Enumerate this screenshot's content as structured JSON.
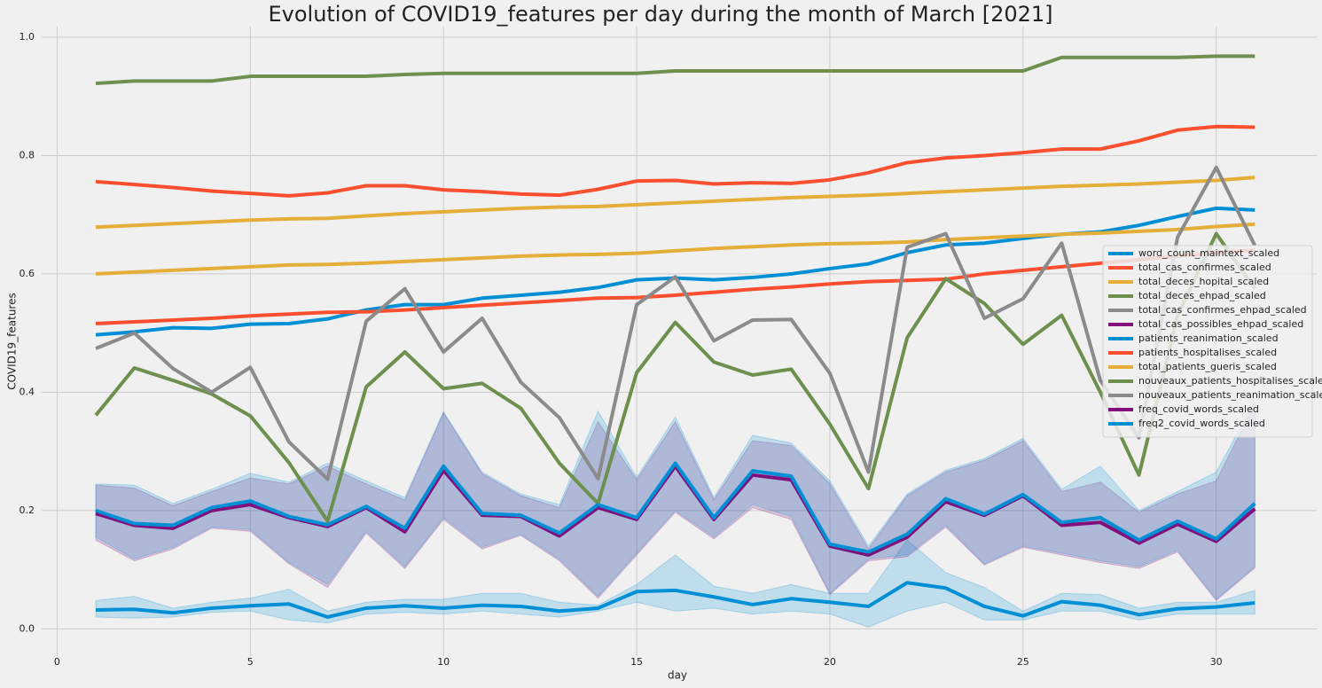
{
  "chart_data": {
    "type": "line",
    "title": "Evolution of COVID19_features per day during the month of March  [2021]",
    "xlabel": "day",
    "ylabel": "COVID19_features",
    "x": [
      1,
      2,
      3,
      4,
      5,
      6,
      7,
      8,
      9,
      10,
      11,
      12,
      13,
      14,
      15,
      16,
      17,
      18,
      19,
      20,
      21,
      22,
      23,
      24,
      25,
      26,
      27,
      28,
      29,
      30,
      31
    ],
    "xlim": [
      -0.4,
      32.6
    ],
    "xticks": [
      0,
      5,
      10,
      15,
      20,
      25,
      30
    ],
    "ylim": [
      -0.046,
      1.018
    ],
    "yticks": [
      {
        "value": 0,
        "label": "0.0"
      },
      0.2,
      0.4,
      0.6,
      0.8,
      {
        "value": 1,
        "label": "1.0"
      }
    ],
    "grid": true,
    "legend": "center right",
    "series": [
      {
        "name": "word_count_maintext_scaled",
        "color": "#008fd5",
        "values": [
          0.032,
          0.033,
          0.027,
          0.035,
          0.039,
          0.042,
          0.02,
          0.035,
          0.039,
          0.035,
          0.04,
          0.038,
          0.03,
          0.035,
          0.063,
          0.065,
          0.054,
          0.041,
          0.051,
          0.045,
          0.038,
          0.078,
          0.069,
          0.038,
          0.022,
          0.046,
          0.04,
          0.024,
          0.034,
          0.037,
          0.044
        ],
        "lower": [
          0.02,
          0.018,
          0.02,
          0.028,
          0.03,
          0.015,
          0.01,
          0.025,
          0.028,
          0.025,
          0.03,
          0.025,
          0.02,
          0.03,
          0.045,
          0.03,
          0.035,
          0.025,
          0.03,
          0.025,
          0.003,
          0.03,
          0.045,
          0.015,
          0.015,
          0.03,
          0.03,
          0.015,
          0.025,
          0.025,
          0.025
        ],
        "upper": [
          0.048,
          0.055,
          0.035,
          0.045,
          0.052,
          0.067,
          0.03,
          0.045,
          0.05,
          0.05,
          0.06,
          0.06,
          0.045,
          0.04,
          0.075,
          0.125,
          0.072,
          0.06,
          0.075,
          0.06,
          0.06,
          0.15,
          0.095,
          0.07,
          0.03,
          0.06,
          0.058,
          0.035,
          0.045,
          0.045,
          0.065
        ]
      },
      {
        "name": "total_cas_confirmes_scaled",
        "color": "#fc4f30",
        "values": [
          0.756,
          0.751,
          0.746,
          0.74,
          0.736,
          0.732,
          0.737,
          0.749,
          0.749,
          0.742,
          0.739,
          0.735,
          0.733,
          0.743,
          0.757,
          0.758,
          0.752,
          0.754,
          0.753,
          0.759,
          0.771,
          0.788,
          0.796,
          0.8,
          0.805,
          0.811,
          0.811,
          0.825,
          0.843,
          0.849,
          0.848
        ]
      },
      {
        "name": "total_deces_hopital_scaled",
        "color": "#e5ae38",
        "values": [
          0.679,
          0.682,
          0.685,
          0.688,
          0.691,
          0.693,
          0.694,
          0.698,
          0.702,
          0.705,
          0.708,
          0.711,
          0.713,
          0.714,
          0.717,
          0.72,
          0.723,
          0.726,
          0.729,
          0.731,
          0.733,
          0.736,
          0.739,
          0.742,
          0.745,
          0.748,
          0.75,
          0.752,
          0.755,
          0.758,
          0.763
        ]
      },
      {
        "name": "total_deces_ehpad_scaled",
        "color": "#6d904f",
        "values": [
          0.922,
          0.926,
          0.926,
          0.926,
          0.934,
          0.934,
          0.934,
          0.934,
          0.937,
          0.939,
          0.939,
          0.939,
          0.939,
          0.939,
          0.939,
          0.943,
          0.943,
          0.943,
          0.943,
          0.943,
          0.943,
          0.943,
          0.943,
          0.943,
          0.943,
          0.966,
          0.966,
          0.966,
          0.966,
          0.968,
          0.968
        ]
      },
      {
        "name": "total_cas_confirmes_ehpad_scaled",
        "color": "#8b8b8b",
        "values": [
          null,
          null,
          null,
          null,
          null,
          null,
          null,
          null,
          null,
          null,
          null,
          null,
          null,
          null,
          null,
          null,
          null,
          null,
          null,
          null,
          null,
          null,
          null,
          null,
          null,
          null,
          null,
          null,
          null,
          null,
          null
        ]
      },
      {
        "name": "total_cas_possibles_ehpad_scaled",
        "color": "#810f7c",
        "values": [
          null,
          null,
          null,
          null,
          null,
          null,
          null,
          null,
          null,
          null,
          null,
          null,
          null,
          null,
          null,
          null,
          null,
          null,
          null,
          null,
          null,
          null,
          null,
          null,
          null,
          null,
          null,
          null,
          null,
          null,
          null
        ]
      },
      {
        "name": "patients_reanimation_scaled",
        "color": "#008fd5",
        "values": [
          0.497,
          0.502,
          0.509,
          0.508,
          0.515,
          0.516,
          0.524,
          0.539,
          0.548,
          0.548,
          0.559,
          0.564,
          0.569,
          0.577,
          0.59,
          0.593,
          0.59,
          0.594,
          0.6,
          0.609,
          0.617,
          0.636,
          0.649,
          0.652,
          0.66,
          0.667,
          0.671,
          0.682,
          0.697,
          0.711,
          0.708
        ]
      },
      {
        "name": "patients_hospitalises_scaled",
        "color": "#fc4f30",
        "values": [
          0.516,
          0.519,
          0.522,
          0.525,
          0.529,
          0.532,
          0.535,
          0.536,
          0.539,
          0.543,
          0.547,
          0.551,
          0.555,
          0.559,
          0.56,
          0.564,
          0.569,
          0.574,
          0.578,
          0.583,
          0.587,
          0.589,
          0.591,
          0.6,
          0.606,
          0.612,
          0.618,
          0.624,
          0.63,
          0.636,
          0.64
        ]
      },
      {
        "name": "total_patients_gueris_scaled",
        "color": "#e5ae38",
        "values": [
          0.6,
          0.603,
          0.606,
          0.609,
          0.612,
          0.615,
          0.616,
          0.618,
          0.621,
          0.624,
          0.627,
          0.63,
          0.632,
          0.633,
          0.635,
          0.639,
          0.643,
          0.646,
          0.649,
          0.651,
          0.652,
          0.654,
          0.658,
          0.661,
          0.664,
          0.667,
          0.669,
          0.672,
          0.675,
          0.68,
          0.684
        ]
      },
      {
        "name": "nouveaux_patients_hospitalises_scaled",
        "color": "#6d904f",
        "values": [
          0.361,
          0.441,
          0.42,
          0.397,
          0.36,
          0.281,
          0.182,
          0.409,
          0.468,
          0.406,
          0.415,
          0.373,
          0.28,
          0.212,
          0.433,
          0.518,
          0.451,
          0.429,
          0.439,
          0.346,
          0.237,
          0.492,
          0.592,
          0.55,
          0.481,
          0.53,
          0.4,
          0.26,
          0.53,
          0.668,
          0.575
        ]
      },
      {
        "name": "nouveaux_patients_reanimation_scaled",
        "color": "#8b8b8b",
        "values": [
          0.474,
          0.5,
          0.44,
          0.4,
          0.442,
          0.316,
          0.253,
          0.52,
          0.575,
          0.468,
          0.525,
          0.417,
          0.357,
          0.254,
          0.548,
          0.595,
          0.487,
          0.522,
          0.523,
          0.432,
          0.265,
          0.645,
          0.668,
          0.525,
          0.558,
          0.652,
          0.42,
          0.323,
          0.662,
          0.78,
          0.648
        ]
      },
      {
        "name": "freq_covid_words_scaled",
        "color": "#810f7c",
        "values": [
          0.195,
          0.175,
          0.17,
          0.2,
          0.21,
          0.188,
          0.173,
          0.205,
          0.164,
          0.268,
          0.192,
          0.19,
          0.157,
          0.205,
          0.185,
          0.275,
          0.185,
          0.26,
          0.252,
          0.14,
          0.125,
          0.155,
          0.215,
          0.192,
          0.225,
          0.175,
          0.18,
          0.145,
          0.177,
          0.148,
          0.203
        ],
        "lower": [
          0.15,
          0.115,
          0.135,
          0.17,
          0.165,
          0.11,
          0.07,
          0.162,
          0.102,
          0.185,
          0.135,
          0.158,
          0.115,
          0.052,
          0.125,
          0.197,
          0.152,
          0.205,
          0.185,
          0.058,
          0.115,
          0.122,
          0.172,
          0.108,
          0.138,
          0.125,
          0.112,
          0.102,
          0.13,
          0.048,
          0.103
        ],
        "upper": [
          0.243,
          0.238,
          0.208,
          0.232,
          0.255,
          0.245,
          0.275,
          0.245,
          0.218,
          0.365,
          0.262,
          0.225,
          0.205,
          0.35,
          0.252,
          0.35,
          0.218,
          0.318,
          0.31,
          0.245,
          0.135,
          0.225,
          0.265,
          0.285,
          0.318,
          0.232,
          0.248,
          0.197,
          0.228,
          0.25,
          0.38
        ]
      },
      {
        "name": "freq2_covid_words_scaled",
        "color": "#008fd5",
        "values": [
          0.2,
          0.178,
          0.175,
          0.205,
          0.216,
          0.19,
          0.176,
          0.207,
          0.17,
          0.275,
          0.195,
          0.192,
          0.162,
          0.21,
          0.188,
          0.28,
          0.188,
          0.267,
          0.258,
          0.143,
          0.13,
          0.16,
          0.22,
          0.194,
          0.227,
          0.18,
          0.188,
          0.15,
          0.182,
          0.152,
          0.212
        ],
        "lower": [
          0.155,
          0.118,
          0.138,
          0.172,
          0.168,
          0.112,
          0.075,
          0.165,
          0.105,
          0.188,
          0.138,
          0.16,
          0.118,
          0.055,
          0.128,
          0.2,
          0.155,
          0.21,
          0.19,
          0.06,
          0.118,
          0.125,
          0.175,
          0.11,
          0.14,
          0.128,
          0.115,
          0.105,
          0.133,
          0.05,
          0.105
        ],
        "upper": [
          0.245,
          0.243,
          0.212,
          0.236,
          0.263,
          0.248,
          0.28,
          0.25,
          0.222,
          0.367,
          0.265,
          0.228,
          0.21,
          0.368,
          0.256,
          0.358,
          0.222,
          0.327,
          0.314,
          0.25,
          0.14,
          0.228,
          0.268,
          0.288,
          0.322,
          0.236,
          0.275,
          0.2,
          0.232,
          0.265,
          0.385
        ]
      }
    ]
  }
}
